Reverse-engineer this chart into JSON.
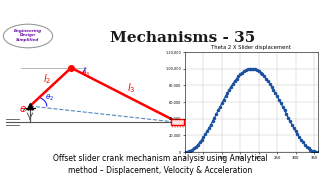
{
  "title": "Mechanisms - 35",
  "graph_title": "Theta 2 X Slider displacement",
  "banner_top_color": "#1a1a1a",
  "banner_bottom_color": "#8dc63f",
  "bg_color": "#ffffff",
  "logo_text": "Engineering\nDesign\nSimplified",
  "logo_text_color": "#6a0dad",
  "curve_color": "#1a52a0",
  "marker_color": "#1a52a0",
  "grid_color": "#c8c8c8",
  "xlim": [
    0,
    360
  ],
  "ylim": [
    0,
    120000
  ],
  "xticks": [
    0,
    50,
    100,
    150,
    200,
    250,
    300,
    350
  ],
  "yticks": [
    0,
    20000,
    40000,
    60000,
    80000,
    100000,
    120000
  ],
  "ytick_labels": [
    "0",
    "20,000",
    "40,000",
    "60,000",
    "80,000",
    "1,00,000",
    "1,20,000"
  ],
  "subtitle": "Offset slider crank mechanism analysis using Analytical\nmethod – Displacement, Velocity & Acceleration",
  "subtitle_fontsize": 5.5,
  "bottom_strip_color": "#8dc63f"
}
